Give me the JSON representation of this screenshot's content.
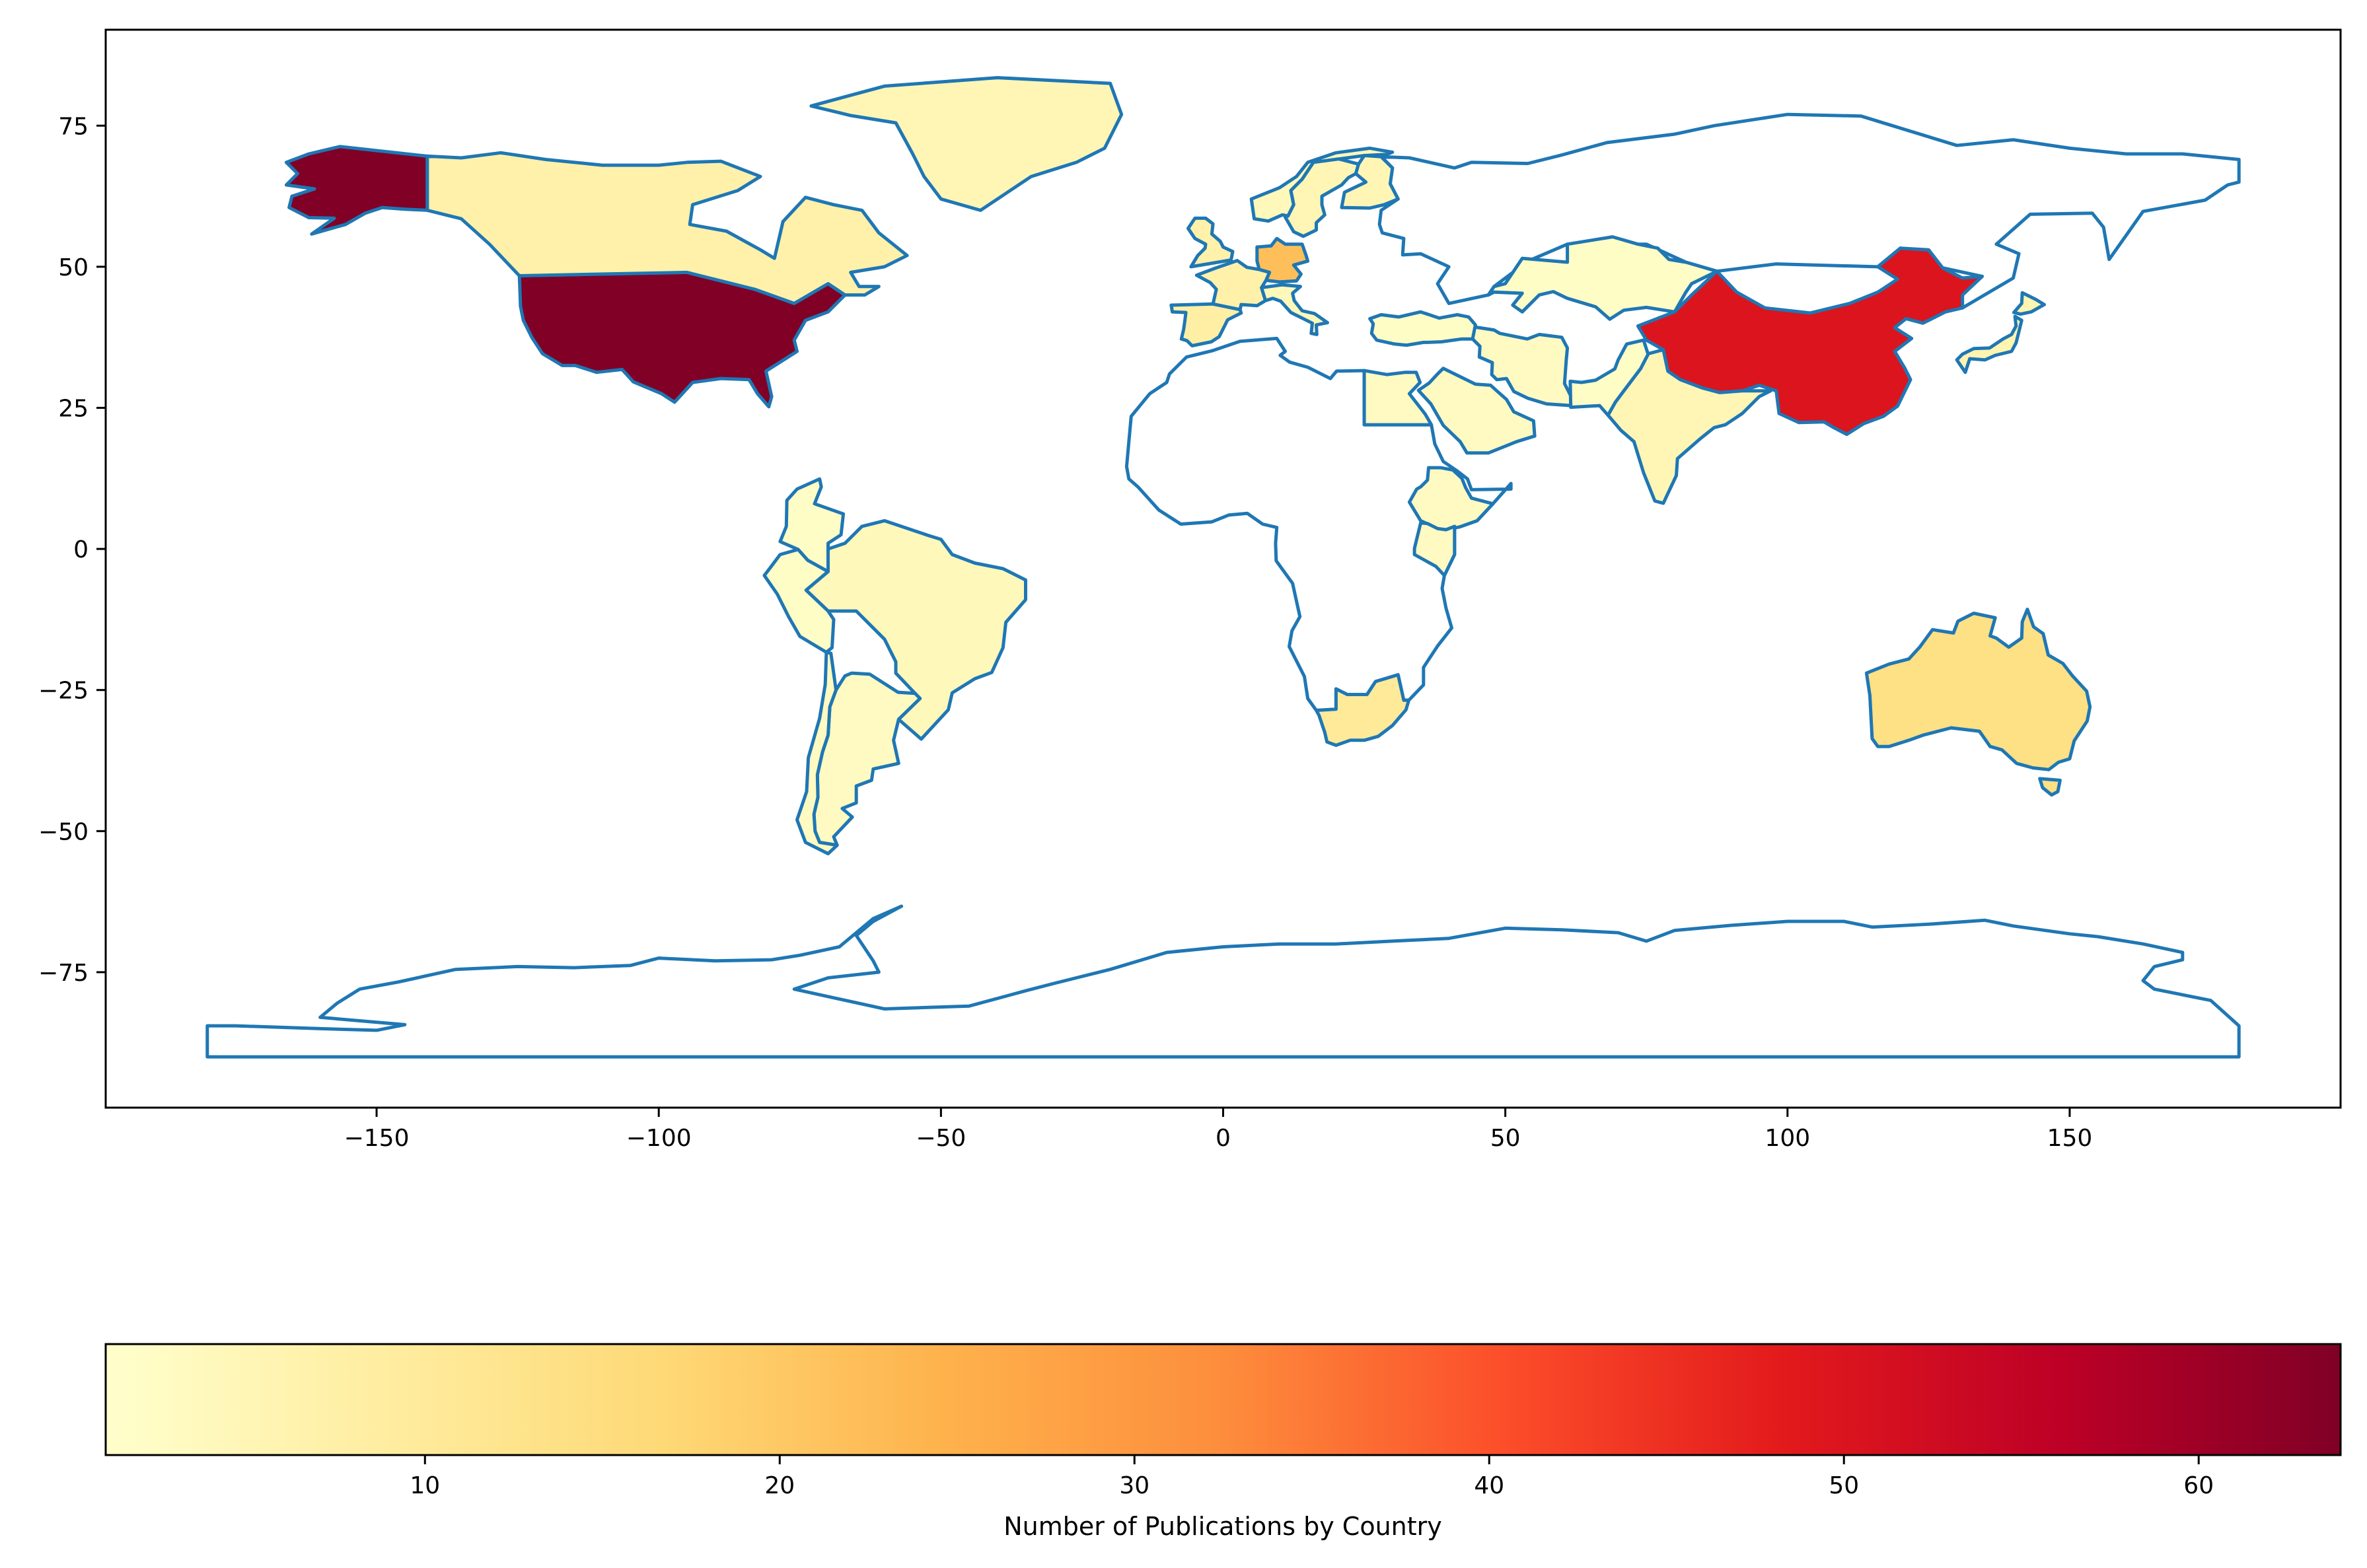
{
  "chart_data": {
    "type": "choropleth",
    "title": "",
    "xlabel": "",
    "ylabel": "",
    "xlim": [
      -198,
      198
    ],
    "ylim": [
      -99,
      92
    ],
    "x_ticks": [
      -150,
      -100,
      -50,
      0,
      50,
      100,
      150
    ],
    "x_tick_labels": [
      "−150",
      "−100",
      "−50",
      "0",
      "50",
      "100",
      "150"
    ],
    "y_ticks": [
      75,
      50,
      25,
      0,
      -25,
      -50,
      -75
    ],
    "y_tick_labels": [
      "75",
      "50",
      "25",
      "0",
      "−25",
      "−50",
      "−75"
    ],
    "boundary_color": "#1f77b4",
    "no_data_fill": "#ffffff",
    "colormap": "YlOrRd",
    "colormap_stops": [
      "#ffffcc",
      "#ffeda0",
      "#fed976",
      "#feb24c",
      "#fd8d3c",
      "#fc4e2a",
      "#e31a1c",
      "#bd0026",
      "#800026"
    ],
    "colorbar": {
      "label": "Number of Publications by Country",
      "orientation": "horizontal",
      "location": "bottom",
      "vmin": 1,
      "vmax": 64,
      "ticks": [
        10,
        20,
        30,
        40,
        50,
        60
      ],
      "tick_labels": [
        "10",
        "20",
        "30",
        "40",
        "50",
        "60"
      ]
    },
    "regions": [
      {
        "name": "United States",
        "value": 64
      },
      {
        "name": "China",
        "value": 50
      },
      {
        "name": "Germany",
        "value": 22
      },
      {
        "name": "Australia",
        "value": 14
      },
      {
        "name": "South Africa",
        "value": 10
      },
      {
        "name": "Spain",
        "value": 8
      },
      {
        "name": "Canada",
        "value": 7
      },
      {
        "name": "United Kingdom",
        "value": 7
      },
      {
        "name": "France",
        "value": 7
      },
      {
        "name": "Japan",
        "value": 6
      },
      {
        "name": "India",
        "value": 5
      },
      {
        "name": "Brazil",
        "value": 4
      },
      {
        "name": "Sweden",
        "value": 5
      },
      {
        "name": "Finland",
        "value": 5
      },
      {
        "name": "Norway",
        "value": 4
      },
      {
        "name": "Italy",
        "value": 4
      },
      {
        "name": "Greenland",
        "value": 5
      },
      {
        "name": "Russia",
        "value": 0
      },
      {
        "name": "Argentina",
        "value": 3
      },
      {
        "name": "Chile",
        "value": 3
      },
      {
        "name": "Egypt",
        "value": 3
      },
      {
        "name": "Saudi Arabia",
        "value": 3
      },
      {
        "name": "Kenya",
        "value": 3
      },
      {
        "name": "Ethiopia",
        "value": 3
      },
      {
        "name": "Iran",
        "value": 3
      },
      {
        "name": "Kazakhstan",
        "value": 2
      },
      {
        "name": "Turkey",
        "value": 2
      },
      {
        "name": "Peru",
        "value": 2
      },
      {
        "name": "Colombia",
        "value": 2
      },
      {
        "name": "Pakistan",
        "value": 2
      },
      {
        "name": "Africa (other)",
        "value": 0
      },
      {
        "name": "Antarctica",
        "value": 0
      }
    ]
  }
}
